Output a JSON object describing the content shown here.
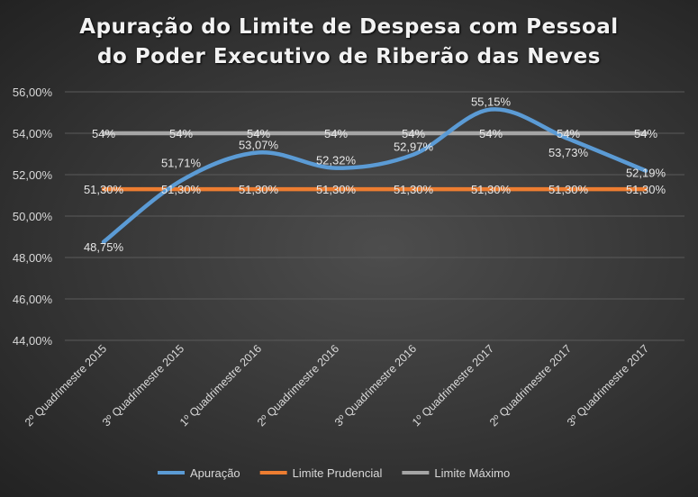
{
  "chart_data": {
    "type": "line",
    "title_line1": "Apuração do Limite de Despesa com Pessoal",
    "title_line2": "do Poder Executivo de Riberão das Neves",
    "categories": [
      "2º Quadrimestre 2015",
      "3º Quadrimestre 2015",
      "1º Quadrimestre 2016",
      "2º Quadrimestre 2016",
      "3º Quadrimestre 2016",
      "1º Quadrimestre 2017",
      "2º Quadrimestre 2017",
      "3º Quadrimestre 2017"
    ],
    "ylim": [
      44,
      56
    ],
    "yticks": [
      "44,00%",
      "46,00%",
      "48,00%",
      "50,00%",
      "52,00%",
      "54,00%",
      "56,00%"
    ],
    "grid": true,
    "legend_position": "bottom",
    "series": [
      {
        "name": "Apuração",
        "color": "#5b9bd5",
        "values": [
          48.75,
          51.71,
          53.07,
          52.32,
          52.97,
          55.15,
          53.73,
          52.19
        ],
        "labels": [
          "48,75%",
          "51,71%",
          "53,07%",
          "52,32%",
          "52,97%",
          "55,15%",
          "53,73%",
          "52,19%"
        ]
      },
      {
        "name": "Limite Prudencial",
        "color": "#ed7d31",
        "values": [
          51.3,
          51.3,
          51.3,
          51.3,
          51.3,
          51.3,
          51.3,
          51.3
        ],
        "labels": [
          "51,30%",
          "51,30%",
          "51,30%",
          "51,30%",
          "51,30%",
          "51,30%",
          "51,30%",
          "51,30%"
        ]
      },
      {
        "name": "Limite Máximo",
        "color": "#a5a5a5",
        "values": [
          54,
          54,
          54,
          54,
          54,
          54,
          54,
          54
        ],
        "labels": [
          "54%",
          "54%",
          "54%",
          "54%",
          "54%",
          "54%",
          "54%",
          "54%"
        ]
      }
    ]
  }
}
